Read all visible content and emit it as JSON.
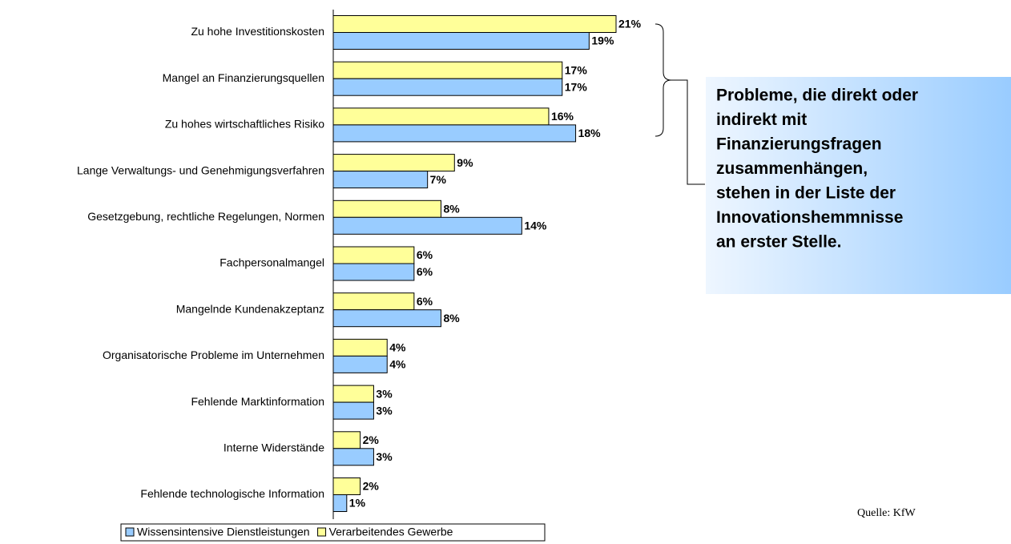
{
  "chart_data": {
    "type": "barh",
    "categories": [
      "Zu hohe Investitionskosten",
      "Mangel an Finanzierungsquellen",
      "Zu hohes wirtschaftliches Risiko",
      "Lange Verwaltungs- und Genehmigungsverfahren",
      "Gesetzgebung, rechtliche Regelungen, Normen",
      "Fachpersonalmangel",
      "Mangelnde Kundenakzeptanz",
      "Organisatorische Probleme im Unternehmen",
      "Fehlende Marktinformation",
      "Interne Widerstände",
      "Fehlende technologische Information"
    ],
    "series": [
      {
        "name": "Wissensintensive Dienstleistungen",
        "color": "#99ccff",
        "values": [
          19,
          17,
          18,
          7,
          14,
          6,
          8,
          4,
          3,
          3,
          1
        ],
        "value_labels": [
          "19%",
          "17%",
          "18%",
          "7%",
          "14%",
          "6%",
          "8%",
          "4%",
          "3%",
          "3%",
          "1%"
        ]
      },
      {
        "name": "Verarbeitendes Gewerbe",
        "color": "#ffff99",
        "values": [
          21,
          17,
          16,
          9,
          8,
          6,
          6,
          4,
          3,
          2,
          2
        ],
        "value_labels": [
          "21%",
          "17%",
          "16%",
          "9%",
          "8%",
          "6%",
          "6%",
          "4%",
          "3%",
          "2%",
          "2%"
        ]
      }
    ],
    "annotation": [
      "Probleme, die direkt oder",
      "indirekt mit",
      "Finanzierungsfragen",
      "zusammenhängen,",
      "stehen in der Liste der",
      "Innovationshemmnisse",
      "an erster Stelle."
    ],
    "source": "Quelle: KfW"
  }
}
